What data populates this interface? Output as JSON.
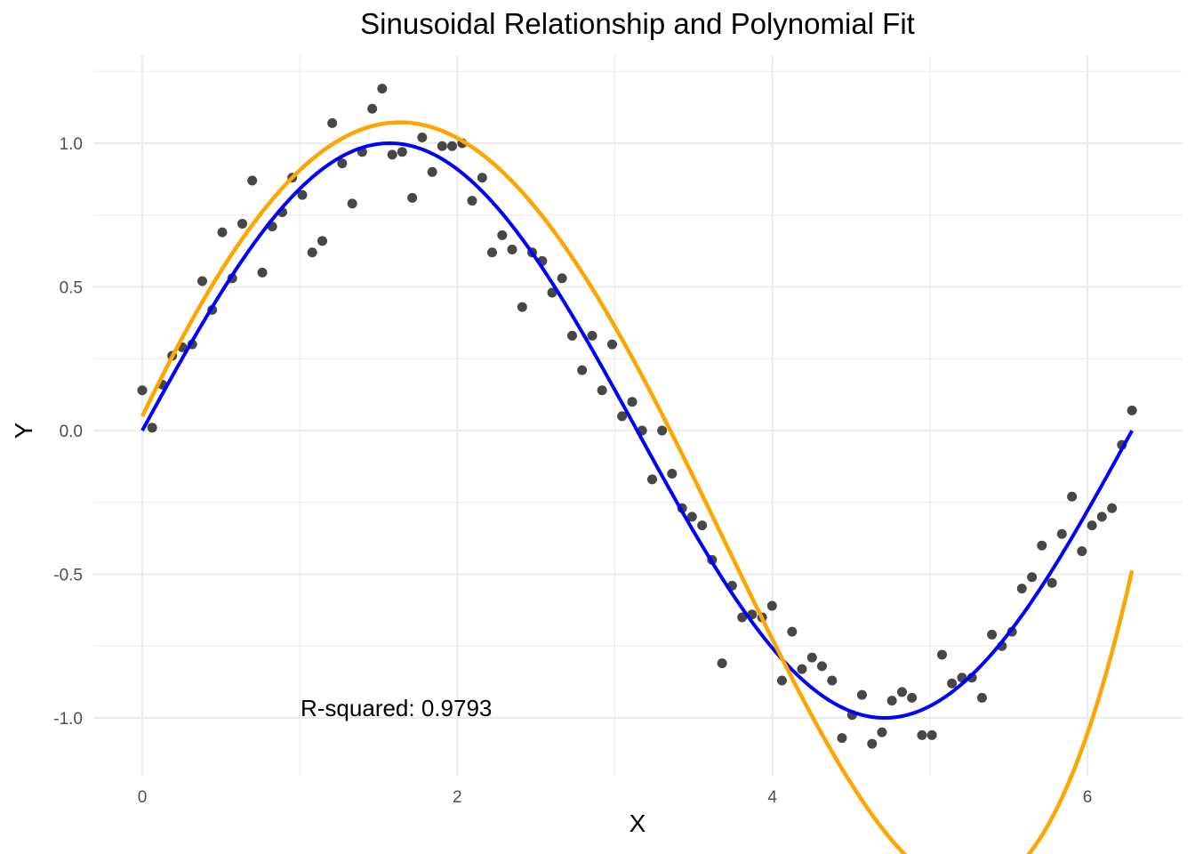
{
  "chart_data": {
    "type": "scatter",
    "title": "Sinusoidal Relationship and Polynomial Fit",
    "xlabel": "X",
    "ylabel": "Y",
    "annotation": "R-squared: 0.9793",
    "xlim": [
      -0.31,
      6.6
    ],
    "ylim": [
      -1.22,
      1.26
    ],
    "xticks": [
      0,
      2,
      4,
      6
    ],
    "xtick_labels": [
      "0",
      "2",
      "4",
      "6"
    ],
    "yticks": [
      -1.0,
      -0.5,
      0.0,
      0.5,
      1.0
    ],
    "ytick_labels": [
      "-1.0",
      "-0.5",
      "0.0",
      "0.5",
      "1.0"
    ],
    "grid": true,
    "colors": {
      "points": "#333333",
      "true_curve": "#0000ff",
      "fit_curve": "#ffa500",
      "grid": "#ebebeb"
    },
    "series": [
      {
        "type": "points",
        "x": [
          0.0,
          0.063,
          0.127,
          0.19,
          0.254,
          0.317,
          0.381,
          0.444,
          0.508,
          0.571,
          0.635,
          0.698,
          0.762,
          0.825,
          0.889,
          0.952,
          1.016,
          1.079,
          1.143,
          1.206,
          1.269,
          1.333,
          1.396,
          1.46,
          1.523,
          1.587,
          1.65,
          1.714,
          1.777,
          1.841,
          1.904,
          1.967,
          2.031,
          2.094,
          2.158,
          2.221,
          2.285,
          2.348,
          2.412,
          2.475,
          2.539,
          2.602,
          2.665,
          2.729,
          2.792,
          2.856,
          2.919,
          2.983,
          3.046,
          3.11,
          3.173,
          3.237,
          3.3,
          3.363,
          3.427,
          3.49,
          3.554,
          3.617,
          3.681,
          3.744,
          3.808,
          3.871,
          3.935,
          3.998,
          4.061,
          4.125,
          4.188,
          4.252,
          4.315,
          4.379,
          4.442,
          4.506,
          4.569,
          4.633,
          4.696,
          4.759,
          4.823,
          4.886,
          4.95,
          5.013,
          5.077,
          5.14,
          5.204,
          5.267,
          5.331,
          5.394,
          5.457,
          5.521,
          5.584,
          5.648,
          5.711,
          5.775,
          5.838,
          5.902,
          5.965,
          6.029,
          6.092,
          6.156,
          6.219,
          6.283
        ],
        "y": [
          0.14,
          0.01,
          0.16,
          0.26,
          0.29,
          0.3,
          0.52,
          0.42,
          0.69,
          0.53,
          0.72,
          0.87,
          0.55,
          0.71,
          0.76,
          0.88,
          0.82,
          0.62,
          0.66,
          1.07,
          0.93,
          0.79,
          0.97,
          1.12,
          1.19,
          0.96,
          0.97,
          0.81,
          1.02,
          0.9,
          0.99,
          0.99,
          1.0,
          0.8,
          0.88,
          0.62,
          0.68,
          0.63,
          0.43,
          0.62,
          0.59,
          0.48,
          0.53,
          0.33,
          0.21,
          0.33,
          0.14,
          0.3,
          0.05,
          0.1,
          0.0,
          -0.17,
          0.0,
          -0.15,
          -0.27,
          -0.3,
          -0.33,
          -0.45,
          -0.81,
          -0.54,
          -0.65,
          -0.64,
          -0.65,
          -0.61,
          -0.87,
          -0.7,
          -0.83,
          -0.79,
          -0.82,
          -0.87,
          -1.07,
          -0.99,
          -0.92,
          -1.09,
          -1.05,
          -0.94,
          -0.91,
          -0.93,
          -1.06,
          -1.06,
          -0.78,
          -0.88,
          -0.86,
          -0.86,
          -0.93,
          -0.71,
          -0.75,
          -0.7,
          -0.55,
          -0.51,
          -0.4,
          -0.53,
          -0.36,
          -0.23,
          -0.42,
          -0.33,
          -0.3,
          -0.27,
          -0.05,
          0.07
        ]
      },
      {
        "type": "line",
        "function": "sin(x)",
        "x_range": [
          0,
          6.283
        ]
      },
      {
        "type": "line",
        "function": "polynomial fit",
        "coefficients": [
          0.05,
          1.13,
          -0.195,
          -0.094,
          0.015
        ],
        "x_range": [
          0,
          6.283
        ]
      }
    ]
  }
}
